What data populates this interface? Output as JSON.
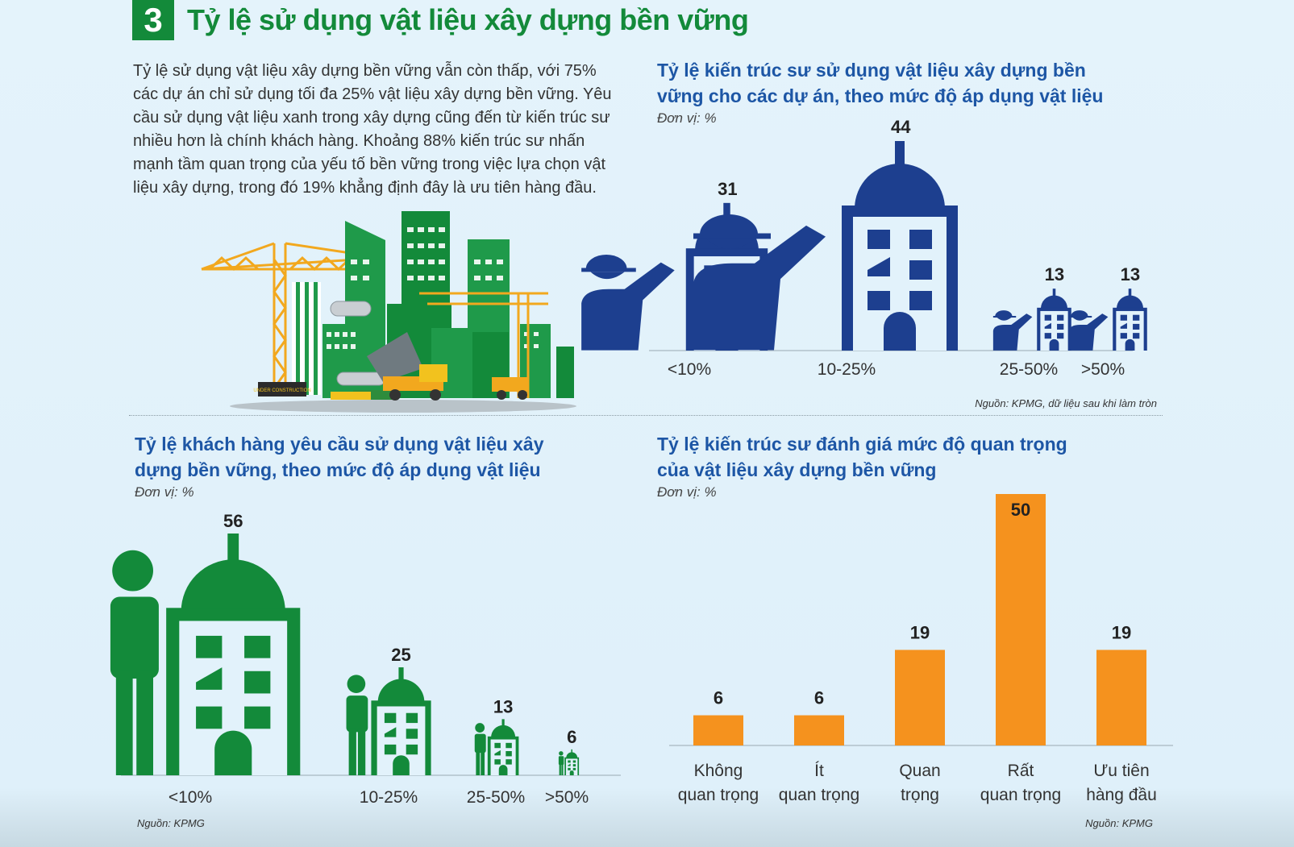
{
  "header": {
    "number": "3",
    "title": "Tỷ lệ sử dụng vật liệu xây dựng bền vững"
  },
  "intro": {
    "text": "Tỷ lệ sử dụng vật liệu xây dựng bền vững vẫn còn thấp, với 75% các dự án chỉ sử dụng tối đa 25% vật liệu xây dựng bền vững. Yêu cầu sử dụng vật liệu xanh trong xây dựng cũng đến từ kiến trúc sư nhiều hơn là chính khách hàng. Khoảng 88% kiến trúc sư nhấn mạnh tầm quan trọng của yếu tố bền vững trong việc lựa chọn vật liệu xây dựng, trong đó 19% khẳng định đây là ưu tiên hàng đầu."
  },
  "illustration": {
    "sign_text": "UNDER CONSTRUCTION"
  },
  "colors": {
    "green": "#138a3a",
    "navy": "#1d3f8f",
    "orange": "#f5921e",
    "title_blue": "#1d56a5"
  },
  "chart_data": [
    {
      "type": "bar",
      "title": "Tỷ lệ kiến trúc sư sử dụng vật liệu xây dựng bền vững cho các dự án, theo mức độ áp dụng vật liệu",
      "unit": "Đơn vị: %",
      "categories": [
        "<10%",
        "10-25%",
        "25-50%",
        ">50%"
      ],
      "values": [
        31,
        44,
        13,
        13
      ],
      "source": "Nguồn: KPMG, dữ liệu sau khi làm tròn"
    },
    {
      "type": "bar",
      "title": "Tỷ lệ khách hàng yêu cầu sử dụng vật liệu xây dựng bền vững, theo mức độ áp dụng vật liệu",
      "unit": "Đơn vị: %",
      "categories": [
        "<10%",
        "10-25%",
        "25-50%",
        ">50%"
      ],
      "values": [
        56,
        25,
        13,
        6
      ],
      "source": "Nguồn: KPMG"
    },
    {
      "type": "bar",
      "title": "Tỷ lệ kiến trúc sư đánh giá mức độ quan trọng của vật liệu xây dựng bền vững",
      "unit": "Đơn vị: %",
      "categories": [
        "Không quan trọng",
        "Ít quan trọng",
        "Quan trọng",
        "Rất quan trọng",
        "Ưu tiên hàng đầu"
      ],
      "category_lines": [
        [
          "Không",
          "quan trọng"
        ],
        [
          "Ít",
          "quan trọng"
        ],
        [
          "Quan",
          "trọng"
        ],
        [
          "Rất",
          "quan trọng"
        ],
        [
          "Ưu tiên",
          "hàng đầu"
        ]
      ],
      "values": [
        6,
        6,
        19,
        50,
        19
      ],
      "source": "Nguồn: KPMG"
    }
  ]
}
